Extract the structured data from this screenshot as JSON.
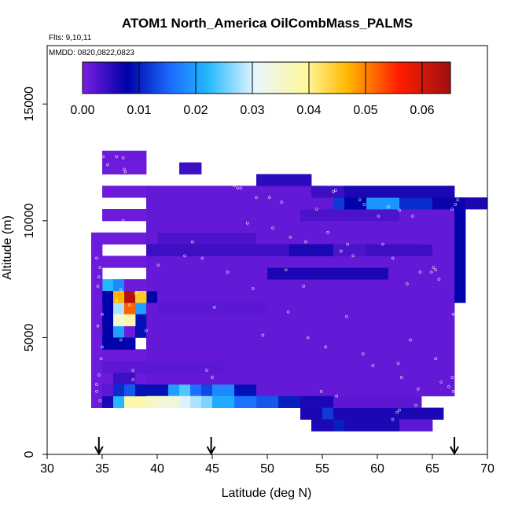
{
  "chart_data": {
    "type": "heatmap",
    "title": "ATOM1 North_America OilCombMass_PALMS",
    "subtitle_flights": "Flts: 9,10,11",
    "subtitle_dates": "MMDD: 0820,0822,0823",
    "xlabel": "Latitude (deg N)",
    "ylabel": "Altitude (m)",
    "xlim": [
      30,
      70
    ],
    "ylim": [
      0,
      17500
    ],
    "xticks": [
      "30",
      "35",
      "40",
      "45",
      "50",
      "55",
      "60",
      "65",
      "70"
    ],
    "yticks": [
      "0",
      "5000",
      "10000",
      "15000"
    ],
    "colorbar": {
      "range": [
        0,
        0.065
      ],
      "ticks": [
        "0.00",
        "0.01",
        "0.02",
        "0.03",
        "0.04",
        "0.05",
        "0.06"
      ],
      "tick_values": [
        0,
        0.01,
        0.02,
        0.03,
        0.04,
        0.05,
        0.06
      ],
      "stops": [
        "#7b1fe0",
        "#0000a8",
        "#1a6cff",
        "#22b8ff",
        "#e8f6ff",
        "#fff79a",
        "#ffb800",
        "#ff1e00",
        "#9e1010"
      ]
    },
    "arrows_latitude": [
      34.7,
      44.9,
      67.0
    ],
    "bin_width_deg": 1.0,
    "bin_height_m": 500,
    "cell_groups": [
      {
        "lat": [
          35,
          36,
          37,
          38
        ],
        "alt": [
          3000,
          4000,
          5000,
          6000,
          7000,
          8000,
          9000,
          10000,
          11000,
          12000,
          12500
        ],
        "v": 0.001
      },
      {
        "lat": [
          39,
          40,
          41,
          42,
          43,
          44,
          45,
          46,
          47,
          48,
          49,
          50,
          51,
          52,
          53,
          54,
          55,
          56,
          57,
          58,
          59,
          60,
          61,
          62,
          63
        ],
        "alt": [
          2500,
          3000,
          3500,
          4000,
          4500,
          5000,
          5500,
          6000,
          6500,
          7000,
          7500,
          8000,
          9000,
          9500,
          10000,
          10500,
          11000
        ],
        "v": 0.0015
      },
      {
        "lat": [
          64,
          65,
          66
        ],
        "alt": [
          2500,
          3000,
          3500,
          4000,
          4500,
          5000,
          5500,
          6000,
          6500,
          7000,
          7500,
          8000,
          8500,
          9000,
          9500,
          10000
        ],
        "v": 0.0015
      },
      {
        "lat": [
          34
        ],
        "alt": [
          2000,
          2500,
          3000,
          3500,
          4000,
          4500,
          5000,
          5500,
          6000,
          6500,
          7000,
          7500,
          8000,
          8500,
          9000
        ],
        "v": 0.001
      },
      {
        "lat": [
          39,
          40,
          41,
          42,
          43,
          44,
          45,
          46,
          47,
          48,
          49,
          50,
          51,
          52,
          53,
          54,
          55,
          56,
          57,
          58,
          59,
          60,
          61,
          62,
          63,
          64
        ],
        "alt": [
          8500
        ],
        "v": 0.004
      },
      {
        "lat": [
          40,
          41,
          42,
          43,
          44,
          45,
          46,
          47,
          48
        ],
        "alt": [
          9000
        ],
        "v": 0.003
      },
      {
        "lat": [
          67
        ],
        "alt": [
          6500,
          7000,
          7500,
          8000,
          8500,
          9000,
          9500,
          10000
        ],
        "v": 0.008
      },
      {
        "lat": [
          35
        ],
        "alt": [
          4500,
          5000,
          5500,
          6000,
          6500
        ],
        "v": 0.008
      },
      {
        "lat": [
          36,
          37
        ],
        "alt": [
          4500
        ],
        "v": 0.008
      },
      {
        "lat": [
          38
        ],
        "alt": [
          5000,
          5500
        ],
        "v": 0.009
      },
      {
        "lat": [
          39
        ],
        "alt": [
          6500
        ],
        "v": 0.008
      },
      {
        "lat": [
          35
        ],
        "alt": [
          7000
        ],
        "v": 0.022
      },
      {
        "lat": [
          36
        ],
        "alt": [
          7000
        ],
        "v": 0.018
      },
      {
        "lat": [
          36
        ],
        "alt": [
          6500
        ],
        "v": 0.047
      },
      {
        "lat": [
          37
        ],
        "alt": [
          6500
        ],
        "v": 0.063
      },
      {
        "lat": [
          38
        ],
        "alt": [
          6500
        ],
        "v": 0.045
      },
      {
        "lat": [
          36
        ],
        "alt": [
          6000
        ],
        "v": 0.028
      },
      {
        "lat": [
          37
        ],
        "alt": [
          6000
        ],
        "v": 0.052
      },
      {
        "lat": [
          38
        ],
        "alt": [
          6000
        ],
        "v": 0.02
      },
      {
        "lat": [
          36
        ],
        "alt": [
          5500
        ],
        "v": 0.035
      },
      {
        "lat": [
          37
        ],
        "alt": [
          5500
        ],
        "v": 0.038
      },
      {
        "lat": [
          36
        ],
        "alt": [
          5000
        ],
        "v": 0.02
      },
      {
        "lat": [
          35,
          36,
          37,
          38,
          39,
          40,
          41,
          42,
          43,
          44,
          45
        ],
        "alt": [
          3500
        ],
        "v": 0.002
      },
      {
        "lat": [
          35,
          36,
          37,
          38,
          39,
          40,
          41,
          42,
          43,
          44,
          45,
          46,
          47,
          48,
          49,
          50,
          51,
          52
        ],
        "alt": [
          2000
        ],
        "v": 0.006
      },
      {
        "lat": [
          35
        ],
        "alt": [
          2500
        ],
        "v": 0.002
      },
      {
        "lat": [
          36
        ],
        "alt": [
          2500
        ],
        "v": 0.011
      },
      {
        "lat": [
          37
        ],
        "alt": [
          2500
        ],
        "v": 0.014
      },
      {
        "lat": [
          38,
          39,
          40
        ],
        "alt": [
          2500
        ],
        "v": 0.009
      },
      {
        "lat": [
          41
        ],
        "alt": [
          2500
        ],
        "v": 0.02
      },
      {
        "lat": [
          42
        ],
        "alt": [
          2500
        ],
        "v": 0.024
      },
      {
        "lat": [
          43
        ],
        "alt": [
          2500
        ],
        "v": 0.016
      },
      {
        "lat": [
          44
        ],
        "alt": [
          2500
        ],
        "v": 0.013
      },
      {
        "lat": [
          45,
          46
        ],
        "alt": [
          2500
        ],
        "v": 0.018
      },
      {
        "lat": [
          47,
          48
        ],
        "alt": [
          2500
        ],
        "v": 0.009
      },
      {
        "lat": [
          36
        ],
        "alt": [
          2000
        ],
        "v": 0.022
      },
      {
        "lat": [
          37,
          38
        ],
        "alt": [
          2000
        ],
        "v": 0.038
      },
      {
        "lat": [
          39
        ],
        "alt": [
          2000
        ],
        "v": 0.036
      },
      {
        "lat": [
          40,
          41
        ],
        "alt": [
          2000
        ],
        "v": 0.034
      },
      {
        "lat": [
          42
        ],
        "alt": [
          2000
        ],
        "v": 0.03
      },
      {
        "lat": [
          43
        ],
        "alt": [
          2000
        ],
        "v": 0.028
      },
      {
        "lat": [
          44
        ],
        "alt": [
          2000
        ],
        "v": 0.026
      },
      {
        "lat": [
          45,
          46
        ],
        "alt": [
          2000
        ],
        "v": 0.021
      },
      {
        "lat": [
          47,
          48
        ],
        "alt": [
          2000
        ],
        "v": 0.016
      },
      {
        "lat": [
          49,
          50
        ],
        "alt": [
          2000
        ],
        "v": 0.014
      },
      {
        "lat": [
          51,
          52
        ],
        "alt": [
          2000
        ],
        "v": 0.01
      },
      {
        "lat": [
          53,
          54,
          55
        ],
        "alt": [
          2000
        ],
        "v": 0.006
      },
      {
        "lat": [
          53,
          54,
          55,
          56,
          57,
          58,
          59,
          60,
          61,
          62,
          63,
          64,
          65
        ],
        "alt": [
          1500
        ],
        "v": 0.006
      },
      {
        "lat": [
          56,
          57,
          58,
          59,
          60,
          61,
          62,
          63
        ],
        "alt": [
          2000
        ],
        "v": 0.002
      },
      {
        "lat": [
          54,
          55,
          56,
          57,
          58,
          59,
          60,
          61
        ],
        "alt": [
          1000
        ],
        "v": 0.006
      },
      {
        "lat": [
          62,
          63,
          64
        ],
        "alt": [
          1000
        ],
        "v": 0.002
      },
      {
        "lat": [
          55
        ],
        "alt": [
          1500
        ],
        "v": 0.012
      },
      {
        "lat": [
          56
        ],
        "alt": [
          1000
        ],
        "v": 0.01
      },
      {
        "lat": [
          56,
          57,
          58,
          59,
          60,
          61,
          62,
          63,
          64,
          65,
          66
        ],
        "alt": [
          10500
        ],
        "v": 0.012
      },
      {
        "lat": [
          57,
          58
        ],
        "alt": [
          10500
        ],
        "v": 0.008
      },
      {
        "lat": [
          59,
          60,
          61
        ],
        "alt": [
          10500
        ],
        "v": 0.019
      },
      {
        "lat": [
          62,
          63,
          64
        ],
        "alt": [
          10500
        ],
        "v": 0.011
      },
      {
        "lat": [
          65,
          66,
          67
        ],
        "alt": [
          10500
        ],
        "v": 0.007
      },
      {
        "lat": [
          68,
          69
        ],
        "alt": [
          10500
        ],
        "v": 0.006
      },
      {
        "lat": [
          54,
          55,
          56
        ],
        "alt": [
          11000
        ],
        "v": 0.004
      },
      {
        "lat": [
          57,
          58,
          59,
          60,
          61,
          62,
          63,
          64,
          65,
          66
        ],
        "alt": [
          11000
        ],
        "v": 0.006
      },
      {
        "lat": [
          49,
          50,
          51,
          52,
          53
        ],
        "alt": [
          11500
        ],
        "v": 0.005
      },
      {
        "lat": [
          42,
          43
        ],
        "alt": [
          12000
        ],
        "v": 0.004
      },
      {
        "lat": [
          53,
          54,
          55,
          56,
          57,
          58,
          59,
          60,
          61
        ],
        "alt": [
          10000
        ],
        "v": 0.003
      },
      {
        "lat": [
          52,
          53,
          54,
          55
        ],
        "alt": [
          8500
        ],
        "v": 0.006
      },
      {
        "lat": [
          56,
          57,
          58
        ],
        "alt": [
          8500
        ],
        "v": 0.003
      },
      {
        "lat": [
          50,
          51,
          52,
          53,
          54,
          55,
          56,
          57,
          58,
          59,
          60
        ],
        "alt": [
          7500
        ],
        "v": 0.006
      },
      {
        "lat": [
          40,
          41,
          42,
          43,
          44,
          45,
          46,
          47,
          48,
          49
        ],
        "alt": [
          6000
        ],
        "v": 0.002
      },
      {
        "lat": [
          36,
          37
        ],
        "alt": [
          3000
        ],
        "v": 0.004
      }
    ],
    "points": [
      [
        35.1,
        12750
      ],
      [
        35.5,
        12400
      ],
      [
        36.3,
        12750
      ],
      [
        36.9,
        12700
      ],
      [
        37.0,
        12200
      ],
      [
        37.1,
        12100
      ],
      [
        34.8,
        10500
      ],
      [
        35.2,
        10900
      ],
      [
        37.0,
        10900
      ],
      [
        37.0,
        10650
      ],
      [
        36.9,
        10000
      ],
      [
        34.5,
        8400
      ],
      [
        34.8,
        8000
      ],
      [
        34.7,
        7600
      ],
      [
        34.6,
        7200
      ],
      [
        36.8,
        7900
      ],
      [
        35.0,
        6000
      ],
      [
        34.6,
        5500
      ],
      [
        35.0,
        4600
      ],
      [
        34.9,
        4100
      ],
      [
        34.7,
        3400
      ],
      [
        34.5,
        3000
      ],
      [
        34.5,
        2700
      ],
      [
        34.8,
        2300
      ],
      [
        36.7,
        4900
      ],
      [
        37.8,
        3600
      ],
      [
        39.0,
        5300
      ],
      [
        42.5,
        8500
      ],
      [
        45.2,
        6300
      ],
      [
        46.4,
        7800
      ],
      [
        47.0,
        11500
      ],
      [
        47.3,
        11400
      ],
      [
        47.6,
        11400
      ],
      [
        49.0,
        11000
      ],
      [
        50.2,
        11000
      ],
      [
        51.3,
        10800
      ],
      [
        52.1,
        9300
      ],
      [
        51.7,
        7900
      ],
      [
        53.3,
        7200
      ],
      [
        51.9,
        6100
      ],
      [
        53.7,
        5000
      ],
      [
        56.2,
        11300
      ],
      [
        56.0,
        11250
      ],
      [
        54.5,
        10500
      ],
      [
        55.5,
        9500
      ],
      [
        56.7,
        8700
      ],
      [
        57.3,
        9000
      ],
      [
        57.8,
        8500
      ],
      [
        58.8,
        10700
      ],
      [
        60.1,
        10200
      ],
      [
        61.0,
        10600
      ],
      [
        62.0,
        10450
      ],
      [
        63.2,
        10200
      ],
      [
        60.5,
        9000
      ],
      [
        61.4,
        8400
      ],
      [
        62.7,
        7300
      ],
      [
        63.9,
        7800
      ],
      [
        64.9,
        7800
      ],
      [
        65.1,
        8000
      ],
      [
        65.3,
        7900
      ],
      [
        67.3,
        10900
      ],
      [
        67.1,
        10700
      ],
      [
        66.8,
        10500
      ],
      [
        65.6,
        7500
      ],
      [
        66.9,
        6000
      ],
      [
        65.3,
        4100
      ],
      [
        63.0,
        4900
      ],
      [
        61.9,
        3900
      ],
      [
        62.2,
        3300
      ],
      [
        63.7,
        2800
      ],
      [
        65.8,
        3100
      ],
      [
        66.5,
        2900
      ],
      [
        66.9,
        2700
      ],
      [
        66.8,
        3300
      ],
      [
        63.5,
        2100
      ],
      [
        62.0,
        1900
      ],
      [
        61.8,
        1800
      ],
      [
        61.4,
        1500
      ],
      [
        64.9,
        800
      ],
      [
        43.2,
        9100
      ],
      [
        40.1,
        8100
      ],
      [
        44.1,
        8400
      ],
      [
        48.7,
        7100
      ],
      [
        49.6,
        5100
      ],
      [
        55.3,
        4600
      ],
      [
        57.2,
        5900
      ],
      [
        58.7,
        4300
      ],
      [
        59.6,
        3800
      ],
      [
        54.9,
        2700
      ],
      [
        56.3,
        2500
      ],
      [
        45.0,
        3300
      ],
      [
        44.5,
        3600
      ],
      [
        37.8,
        3200
      ],
      [
        35.6,
        1900
      ],
      [
        36.7,
        7050
      ],
      [
        37.5,
        6400
      ],
      [
        38.0,
        6900
      ],
      [
        36.3,
        6600
      ],
      [
        48.2,
        9900
      ],
      [
        50.5,
        9700
      ],
      [
        53.5,
        9100
      ],
      [
        58.4,
        10900
      ]
    ]
  }
}
